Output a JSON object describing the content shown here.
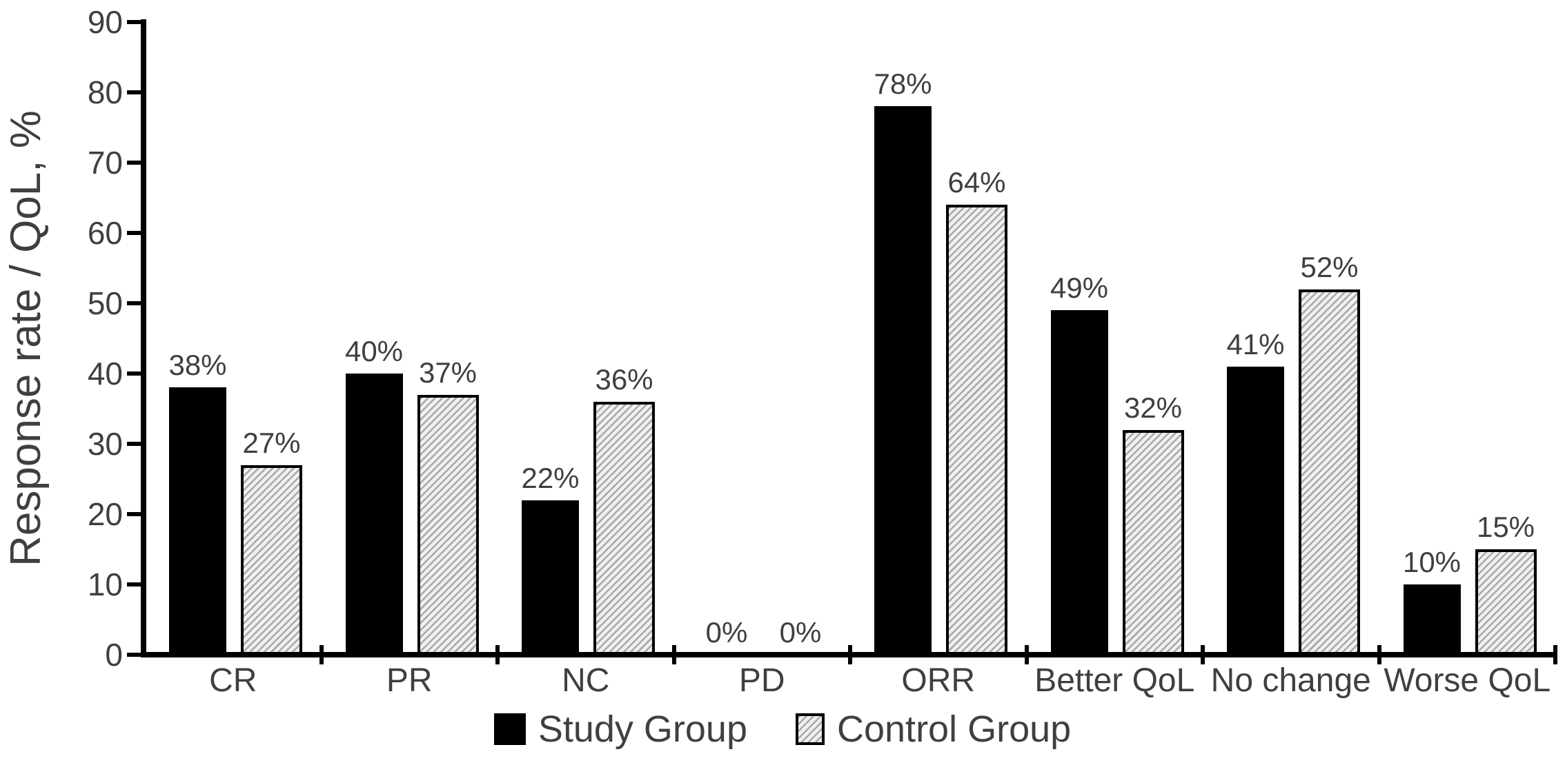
{
  "chart_data": {
    "type": "bar",
    "title": "",
    "xlabel": "",
    "ylabel": "Response rate / QoL, %",
    "ylim": [
      0,
      90
    ],
    "ytick_step": 10,
    "yticks": [
      "0",
      "10",
      "20",
      "30",
      "40",
      "50",
      "60",
      "70",
      "80",
      "90"
    ],
    "grid": false,
    "legend_position": "bottom-center",
    "categories": [
      "CR",
      "PR",
      "NC",
      "PD",
      "ORR",
      "Better QoL",
      "No change",
      "Worse QoL"
    ],
    "series": [
      {
        "name": "Study Group",
        "style": "solid-black",
        "values": [
          38,
          40,
          22,
          0,
          78,
          49,
          41,
          10
        ],
        "labels": [
          "38%",
          "40%",
          "22%",
          "0%",
          "78%",
          "49%",
          "41%",
          "10%"
        ]
      },
      {
        "name": "Control Group",
        "style": "hatched-diagonal",
        "values": [
          27,
          37,
          36,
          0,
          64,
          32,
          52,
          15
        ],
        "labels": [
          "27%",
          "37%",
          "36%",
          "0%",
          "64%",
          "32%",
          "52%",
          "15%"
        ]
      }
    ]
  },
  "colors": {
    "text": "#3f3f3f",
    "bar_black": "#000000",
    "axis": "#000000",
    "hatch_line": "#a8a8a8",
    "hatch_bg": "#f0f0f0"
  },
  "legend": {
    "items": [
      {
        "label": "Study Group",
        "swatch": "solid-black"
      },
      {
        "label": "Control Group",
        "swatch": "hatched-diagonal"
      }
    ]
  }
}
